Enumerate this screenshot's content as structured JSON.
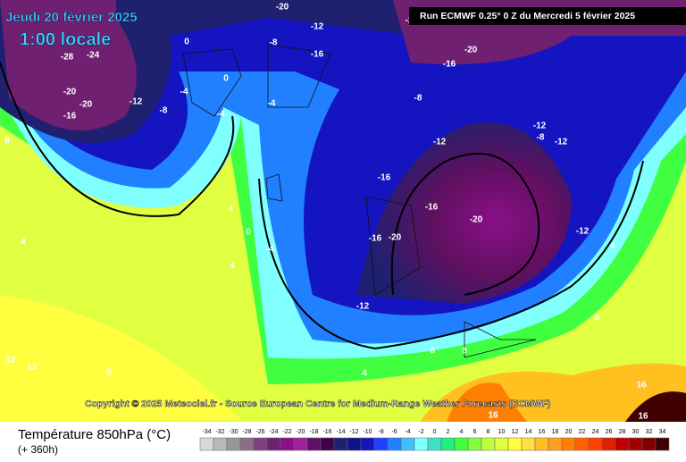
{
  "header": {
    "date": "Jeudi 20 février 2025",
    "time": "1:00 locale",
    "run": "Run ECMWF 0.25° 0 Z du Mercredi 5 février 2025"
  },
  "copyright": "Copyright © 2025 Meteociel.fr - Source European Centre for Medium-Range Weather Forecasts (ECMWF)",
  "legend": {
    "title": "Température 850hPa (°C)",
    "lead": "(+ 360h)",
    "values": [
      -34,
      -32,
      -30,
      -28,
      -26,
      -24,
      -22,
      -20,
      -18,
      -16,
      -14,
      -12,
      -10,
      -8,
      -6,
      -4,
      -2,
      0,
      2,
      4,
      6,
      8,
      10,
      12,
      14,
      16,
      18,
      20,
      22,
      24,
      26,
      28,
      30,
      32,
      34
    ],
    "colors": [
      "#d8d8d8",
      "#b8b8b8",
      "#989898",
      "#887088",
      "#804080",
      "#702070",
      "#8a108a",
      "#a020a0",
      "#601060",
      "#400050",
      "#202070",
      "#10108a",
      "#1414c0",
      "#2040ff",
      "#2080ff",
      "#40c0ff",
      "#80ffff",
      "#40e0c0",
      "#20f080",
      "#40ff40",
      "#80ff40",
      "#c0ff40",
      "#e0ff40",
      "#ffff40",
      "#ffe040",
      "#ffc020",
      "#ffa020",
      "#ff8000",
      "#ff6000",
      "#ff4000",
      "#e02000",
      "#c00000",
      "#a00000",
      "#800000",
      "#400000"
    ]
  },
  "map_labels": [
    "-28",
    "-24",
    "-20",
    "-20",
    "-16",
    "-12",
    "-8",
    "-4",
    "0",
    "-4",
    "0",
    "-4",
    "-8",
    "-12",
    "-16",
    "-20",
    "-16",
    "-20",
    "-12",
    "-12",
    "-8",
    "-12",
    "-8",
    "-12",
    "-16",
    "-16",
    "-20",
    "-12",
    "-12",
    "8",
    "4",
    "4",
    "0",
    "-4",
    "4",
    "12",
    "12",
    "8",
    "4",
    "8",
    "8",
    "16",
    "16",
    "16",
    "8",
    "4",
    "-2",
    "-16",
    "-20"
  ]
}
